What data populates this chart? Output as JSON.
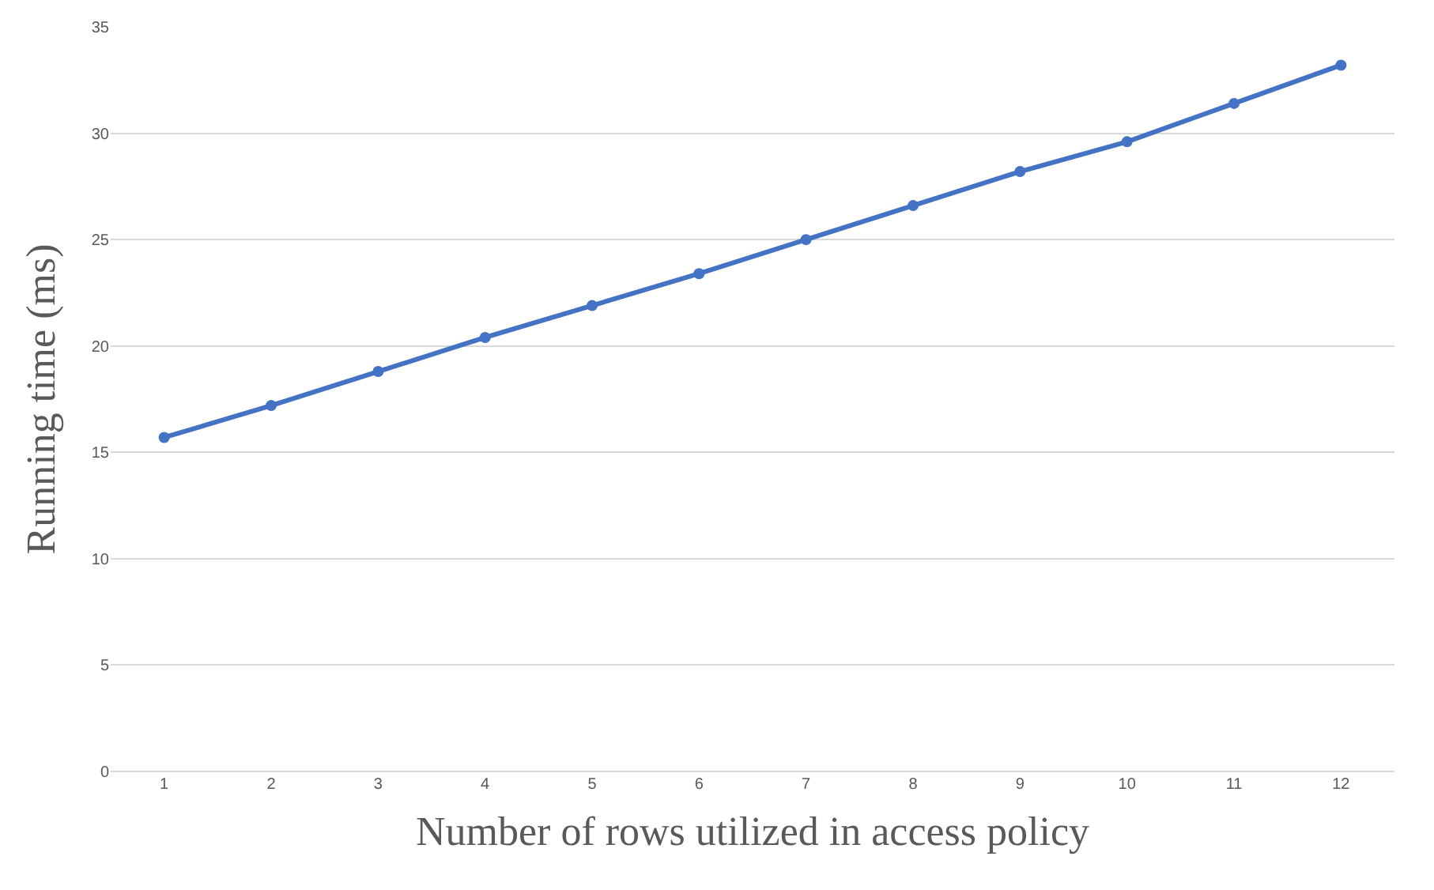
{
  "chart_data": {
    "type": "line",
    "xlabel": "Number of rows utilized in access policy",
    "ylabel": "Running time (ms)",
    "categories": [
      "1",
      "2",
      "3",
      "4",
      "5",
      "6",
      "7",
      "8",
      "9",
      "10",
      "11",
      "12"
    ],
    "series": [
      {
        "color": "#4472c4",
        "values": [
          15.7,
          17.2,
          18.8,
          20.4,
          21.9,
          23.4,
          25.0,
          26.6,
          28.2,
          29.6,
          31.4,
          33.2
        ]
      }
    ],
    "ylim": [
      0,
      35
    ],
    "yticks": [
      0,
      5,
      10,
      15,
      20,
      25,
      30,
      35
    ],
    "grid": "y",
    "marker": "circle",
    "line_style": "solid",
    "legend": false
  }
}
